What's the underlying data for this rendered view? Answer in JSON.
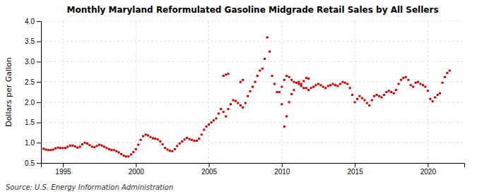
{
  "chart_data": {
    "type": "scatter",
    "title": "Monthly Maryland Reformulated Gasoline Midgrade Retail Sales by All Sellers",
    "y_label": "Dollars per Gallon",
    "annotations": [
      "Source: U.S. Energy Information Administration"
    ],
    "color": "#CC0000",
    "marker": "square",
    "grid": true,
    "xlim": [
      1993.5,
      2022.5
    ],
    "ylim": [
      0.5,
      4.0
    ],
    "xticks": [
      1995,
      2000,
      2005,
      2010,
      2015,
      2020
    ],
    "yticks": [
      0.5,
      {
        "value": 1.0,
        "label": "1.0"
      },
      1.5,
      {
        "value": 2.0,
        "label": "2.0"
      },
      2.5,
      {
        "value": 3.0,
        "label": "3.0"
      },
      3.5,
      {
        "value": 4.0,
        "label": "4.0"
      }
    ],
    "x": [
      1993.67,
      1993.83,
      1994.0,
      1994.17,
      1994.33,
      1994.5,
      1994.67,
      1994.83,
      1995.0,
      1995.17,
      1995.33,
      1995.5,
      1995.67,
      1995.83,
      1996.0,
      1996.17,
      1996.33,
      1996.5,
      1996.67,
      1996.83,
      1997.0,
      1997.17,
      1997.33,
      1997.5,
      1997.67,
      1997.83,
      1998.0,
      1998.17,
      1998.33,
      1998.5,
      1998.67,
      1998.83,
      1999.0,
      1999.17,
      1999.33,
      1999.5,
      1999.67,
      1999.83,
      2000.0,
      2000.17,
      2000.33,
      2000.5,
      2000.67,
      2000.83,
      2001.0,
      2001.17,
      2001.33,
      2001.5,
      2001.67,
      2001.83,
      2002.0,
      2002.17,
      2002.33,
      2002.5,
      2002.67,
      2002.83,
      2003.0,
      2003.17,
      2003.33,
      2003.5,
      2003.67,
      2003.83,
      2004.0,
      2004.17,
      2004.33,
      2004.5,
      2004.67,
      2004.83,
      2005.0,
      2005.17,
      2005.33,
      2005.5,
      2005.67,
      2005.83,
      2006.0,
      2006.17,
      2006.33,
      2006.5,
      2006.67,
      2006.83,
      2007.0,
      2007.17,
      2007.33,
      2007.5,
      2007.67,
      2007.83,
      2008.0,
      2008.17,
      2008.33,
      2008.5,
      2008.67,
      2008.83,
      2009.0,
      2009.17,
      2009.33,
      2009.5,
      2009.67,
      2009.83,
      2010.0,
      2010.17,
      2010.33,
      2010.5,
      2010.67,
      2010.83,
      2011.0,
      2011.17,
      2011.33,
      2011.5,
      2011.67,
      2011.83,
      2006.0,
      2006.17,
      2006.33,
      2007.17,
      2007.33,
      2010.0,
      2010.17,
      2010.33,
      2010.5,
      2010.67,
      2010.83,
      2011.17,
      2011.33,
      2011.5,
      2011.67,
      2011.83,
      2012.0,
      2012.17,
      2012.33,
      2012.5,
      2012.67,
      2012.83,
      2013.0,
      2013.17,
      2013.33,
      2013.5,
      2013.67,
      2013.83,
      2014.0,
      2014.17,
      2014.33,
      2014.5,
      2014.67,
      2014.83,
      2015.0,
      2015.17,
      2015.33,
      2015.5,
      2015.67,
      2015.83,
      2016.0,
      2016.17,
      2016.33,
      2016.5,
      2016.67,
      2016.83,
      2017.0,
      2017.17,
      2017.33,
      2017.5,
      2017.67,
      2017.83,
      2018.0,
      2018.17,
      2018.33,
      2018.5,
      2018.67,
      2018.83,
      2019.0,
      2019.17,
      2019.33,
      2019.5,
      2019.67,
      2019.83,
      2020.0,
      2020.17,
      2020.33,
      2020.5,
      2020.67,
      2020.83,
      2021.0,
      2021.17,
      2021.33,
      2021.5
    ],
    "values": [
      0.85,
      0.83,
      0.82,
      0.82,
      0.83,
      0.86,
      0.88,
      0.87,
      0.87,
      0.87,
      0.9,
      0.93,
      0.93,
      0.91,
      0.88,
      0.9,
      0.96,
      1.0,
      0.98,
      0.94,
      0.9,
      0.89,
      0.92,
      0.95,
      0.93,
      0.9,
      0.87,
      0.84,
      0.82,
      0.82,
      0.79,
      0.76,
      0.72,
      0.68,
      0.66,
      0.66,
      0.71,
      0.77,
      0.84,
      0.95,
      1.07,
      1.16,
      1.2,
      1.18,
      1.14,
      1.11,
      1.1,
      1.08,
      1.03,
      0.96,
      0.87,
      0.83,
      0.8,
      0.79,
      0.84,
      0.92,
      0.98,
      1.03,
      1.08,
      1.12,
      1.09,
      1.07,
      1.05,
      1.05,
      1.1,
      1.2,
      1.32,
      1.4,
      1.45,
      1.5,
      1.55,
      1.6,
      1.72,
      1.83,
      1.76,
      1.65,
      1.83,
      1.95,
      2.05,
      2.03,
      1.98,
      1.92,
      1.87,
      1.98,
      2.15,
      2.27,
      2.38,
      2.5,
      2.65,
      2.78,
      2.83,
      3.07,
      3.6,
      3.25,
      2.65,
      2.45,
      2.25,
      2.25,
      2.38,
      2.55,
      2.65,
      2.62,
      2.55,
      2.5,
      2.48,
      2.45,
      2.45,
      2.52,
      2.6,
      2.58,
      2.65,
      2.68,
      2.7,
      2.5,
      2.55,
      1.95,
      1.4,
      1.65,
      2.0,
      2.2,
      2.3,
      2.5,
      2.4,
      2.35,
      2.35,
      2.3,
      2.35,
      2.38,
      2.42,
      2.45,
      2.42,
      2.38,
      2.35,
      2.4,
      2.42,
      2.45,
      2.42,
      2.4,
      2.45,
      2.5,
      2.48,
      2.45,
      2.35,
      2.18,
      2.0,
      2.08,
      2.15,
      2.1,
      2.05,
      1.98,
      1.92,
      2.05,
      2.15,
      2.18,
      2.15,
      2.12,
      2.18,
      2.25,
      2.28,
      2.25,
      2.22,
      2.3,
      2.45,
      2.55,
      2.6,
      2.62,
      2.55,
      2.42,
      2.38,
      2.48,
      2.5,
      2.45,
      2.42,
      2.38,
      2.28,
      2.08,
      2.02,
      2.12,
      2.18,
      2.22,
      2.48,
      2.62,
      2.72,
      2.78
    ]
  }
}
